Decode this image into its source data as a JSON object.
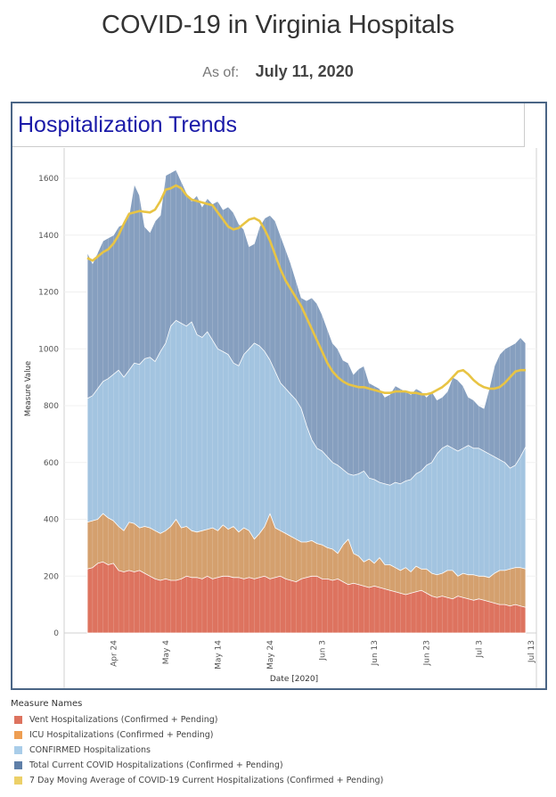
{
  "header": {
    "title": "COVID-19 in Virginia Hospitals",
    "as_of_label": "As of:",
    "as_of_date": "July 11, 2020"
  },
  "panel": {
    "title": "Hospitalization Trends"
  },
  "colors": {
    "vent": "#dd735f",
    "icu": "#d4a06e",
    "confirmed": "#a3c4e0",
    "total": "#869fbf",
    "ma": "#e8c444"
  },
  "legend": {
    "title": "Measure Names",
    "items": [
      {
        "label": "Vent Hospitalizations (Confirmed + Pending)",
        "color": "#dd735f"
      },
      {
        "label": "ICU Hospitalizations (Confirmed + Pending)",
        "color": "#ee9e52"
      },
      {
        "label": "CONFIRMED Hospitalizations",
        "color": "#a9cde9"
      },
      {
        "label": "Total Current COVID Hospitalizations (Confirmed + Pending)",
        "color": "#5f7fa8"
      },
      {
        "label": "7 Day Moving Average of COVID-19 Current Hospitalizations (Confirmed + Pending)",
        "color": "#ecd068"
      }
    ]
  },
  "chart_data": {
    "type": "area",
    "xlabel": "Date [2020]",
    "ylabel": "Measure Value",
    "ylim": [
      0,
      1650
    ],
    "yticks": [
      0,
      200,
      400,
      600,
      800,
      1000,
      1200,
      1400,
      1600
    ],
    "xticks": [
      "Apr 24",
      "May 4",
      "May 14",
      "May 24",
      "Jun 3",
      "Jun 13",
      "Jun 23",
      "Jul 3",
      "Jul 13"
    ],
    "x_start": "Apr 19",
    "x_end": "Jul 11",
    "grid": true,
    "series": [
      {
        "name": "Vent Hospitalizations (Confirmed + Pending)",
        "values": [
          225,
          230,
          245,
          250,
          240,
          245,
          220,
          215,
          220,
          215,
          220,
          210,
          200,
          190,
          185,
          190,
          185,
          185,
          190,
          200,
          195,
          195,
          190,
          200,
          190,
          195,
          200,
          200,
          195,
          195,
          190,
          195,
          190,
          195,
          200,
          190,
          195,
          200,
          190,
          185,
          180,
          190,
          195,
          200,
          200,
          190,
          190,
          185,
          190,
          180,
          170,
          175,
          170,
          165,
          160,
          165,
          160,
          155,
          150,
          145,
          140,
          135,
          140,
          145,
          150,
          140,
          130,
          125,
          130,
          125,
          120,
          130,
          125,
          120,
          115,
          120,
          115,
          110,
          105,
          100,
          100,
          95,
          100,
          95,
          90
        ]
      },
      {
        "name": "ICU Hospitalizations (Confirmed + Pending)",
        "values": [
          390,
          395,
          400,
          420,
          405,
          395,
          375,
          360,
          390,
          385,
          370,
          375,
          370,
          360,
          350,
          360,
          375,
          400,
          370,
          375,
          360,
          355,
          360,
          365,
          370,
          360,
          380,
          365,
          375,
          355,
          370,
          360,
          330,
          350,
          375,
          420,
          370,
          360,
          350,
          340,
          330,
          320,
          320,
          325,
          315,
          310,
          300,
          295,
          280,
          310,
          330,
          280,
          270,
          250,
          260,
          245,
          265,
          240,
          240,
          230,
          220,
          230,
          215,
          235,
          225,
          225,
          210,
          205,
          210,
          220,
          220,
          200,
          210,
          205,
          205,
          200,
          200,
          195,
          210,
          220,
          220,
          225,
          230,
          230,
          225
        ]
      },
      {
        "name": "CONFIRMED Hospitalizations",
        "values": [
          825,
          835,
          860,
          885,
          895,
          910,
          925,
          900,
          925,
          950,
          945,
          965,
          970,
          955,
          990,
          1020,
          1080,
          1100,
          1090,
          1080,
          1095,
          1050,
          1040,
          1060,
          1030,
          1000,
          990,
          980,
          950,
          940,
          980,
          1000,
          1020,
          1010,
          990,
          960,
          920,
          880,
          860,
          840,
          820,
          790,
          730,
          680,
          650,
          640,
          620,
          600,
          590,
          575,
          560,
          555,
          560,
          570,
          545,
          540,
          530,
          525,
          520,
          530,
          525,
          535,
          540,
          560,
          570,
          590,
          600,
          630,
          650,
          660,
          650,
          640,
          650,
          660,
          650,
          650,
          640,
          630,
          620,
          610,
          600,
          580,
          590,
          620,
          655
        ]
      },
      {
        "name": "Total Current COVID Hospitalizations (Confirmed + Pending)",
        "values": [
          1340,
          1300,
          1340,
          1380,
          1390,
          1400,
          1430,
          1440,
          1470,
          1580,
          1540,
          1430,
          1410,
          1450,
          1470,
          1610,
          1620,
          1630,
          1590,
          1550,
          1520,
          1540,
          1500,
          1530,
          1510,
          1520,
          1490,
          1500,
          1480,
          1440,
          1420,
          1360,
          1370,
          1430,
          1460,
          1470,
          1450,
          1400,
          1350,
          1300,
          1240,
          1180,
          1170,
          1180,
          1160,
          1120,
          1070,
          1020,
          1000,
          960,
          950,
          910,
          930,
          940,
          880,
          870,
          860,
          830,
          840,
          870,
          860,
          850,
          840,
          860,
          850,
          830,
          850,
          820,
          830,
          850,
          900,
          890,
          870,
          830,
          820,
          800,
          790,
          860,
          940,
          980,
          1000,
          1010,
          1020,
          1040,
          1020
        ]
      },
      {
        "name": "7 Day Moving Average of COVID-19 Current Hospitalizations (Confirmed + Pending)",
        "values": [
          1320,
          1310,
          1325,
          1340,
          1350,
          1370,
          1400,
          1440,
          1475,
          1480,
          1485,
          1482,
          1480,
          1490,
          1520,
          1560,
          1565,
          1575,
          1565,
          1540,
          1525,
          1520,
          1515,
          1510,
          1505,
          1480,
          1455,
          1430,
          1420,
          1425,
          1440,
          1455,
          1460,
          1450,
          1420,
          1380,
          1330,
          1280,
          1240,
          1210,
          1180,
          1150,
          1110,
          1070,
          1030,
          990,
          950,
          920,
          900,
          885,
          875,
          870,
          865,
          865,
          860,
          855,
          850,
          845,
          845,
          850,
          850,
          850,
          845,
          845,
          840,
          840,
          845,
          855,
          865,
          880,
          900,
          920,
          925,
          910,
          890,
          875,
          865,
          860,
          860,
          865,
          880,
          900,
          920,
          925,
          925
        ]
      }
    ]
  }
}
